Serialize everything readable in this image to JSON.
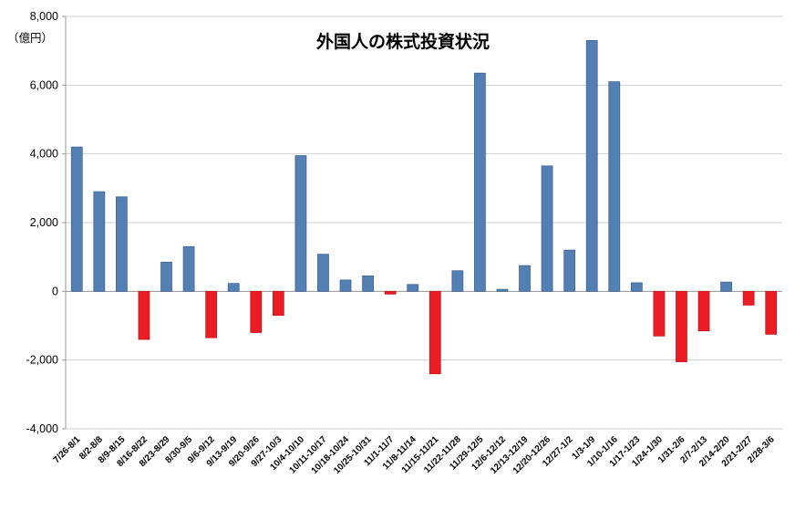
{
  "chart_data": {
    "type": "bar",
    "title": "外国人の株式投資状況",
    "unit_label": "（億円）",
    "xlabel": "",
    "ylabel": "",
    "ylim": [
      -4000,
      8000
    ],
    "ytick_interval": 2000,
    "grid": true,
    "legend": "none",
    "positive_color": "#537fb2",
    "positive_border": "#3c6392",
    "negative_color": "#ec1c24",
    "negative_border": "#c0161c",
    "gridline_color": "#d0d0d0",
    "axis_color": "#9a9a9a",
    "categories": [
      "7/26-8/1",
      "8/2-8/8",
      "8/9-8/15",
      "8/16-8/22",
      "8/23-8/29",
      "8/30-9/5",
      "9/6-9/12",
      "9/13-9/19",
      "9/20-9/26",
      "9/27-10/3",
      "10/4-10/10",
      "10/11-10/17",
      "10/18-10/24",
      "10/25-10/31",
      "11/1-11/7",
      "11/8-11/14",
      "11/15-11/21",
      "11/22-11/28",
      "11/29-12/5",
      "12/6-12/12",
      "12/13-12/19",
      "12/20-12/26",
      "12/27-1/2",
      "1/3-1/9",
      "1/10-1/16",
      "1/17-1/23",
      "1/24-1/30",
      "1/31-2/6",
      "2/7-2/13",
      "2/14-2/20",
      "2/21-2/27",
      "2/28-3/6"
    ],
    "values": [
      4200,
      2900,
      2750,
      -1400,
      850,
      1300,
      -1350,
      230,
      -1200,
      -700,
      3950,
      1080,
      330,
      450,
      -80,
      200,
      -2400,
      600,
      6350,
      60,
      750,
      3650,
      1200,
      7300,
      6100,
      250,
      -1300,
      -2050,
      -1150,
      270,
      -400,
      -1250
    ]
  }
}
